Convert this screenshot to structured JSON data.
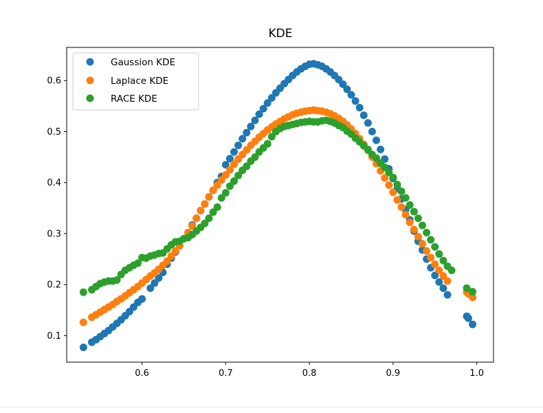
{
  "chart_data": {
    "type": "scatter",
    "title": "KDE",
    "xlabel": "",
    "ylabel": "",
    "xlim": [
      0.51,
      1.02
    ],
    "ylim": [
      0.048,
      0.665
    ],
    "xticks": [
      0.6,
      0.7,
      0.8,
      0.9,
      1.0
    ],
    "xtick_labels": [
      "0.6",
      "0.7",
      "0.8",
      "0.9",
      "1.0"
    ],
    "yticks": [
      0.1,
      0.2,
      0.3,
      0.4,
      0.5,
      0.6
    ],
    "ytick_labels": [
      "0.1",
      "0.2",
      "0.3",
      "0.4",
      "0.5",
      "0.6"
    ],
    "grid": false,
    "legend_position": "top-left",
    "series": [
      {
        "name": "Gaussion KDE",
        "color": "#1f77b4",
        "points": [
          [
            0.53,
            0.077
          ],
          [
            0.54,
            0.087
          ],
          [
            0.545,
            0.092
          ],
          [
            0.55,
            0.098
          ],
          [
            0.555,
            0.104
          ],
          [
            0.56,
            0.11
          ],
          [
            0.565,
            0.117
          ],
          [
            0.57,
            0.124
          ],
          [
            0.575,
            0.131
          ],
          [
            0.58,
            0.139
          ],
          [
            0.585,
            0.147
          ],
          [
            0.59,
            0.156
          ],
          [
            0.595,
            0.165
          ],
          [
            0.6,
            0.172
          ],
          [
            0.61,
            0.193
          ],
          [
            0.615,
            0.203
          ],
          [
            0.62,
            0.213
          ],
          [
            0.625,
            0.224
          ],
          [
            0.63,
            0.24
          ],
          [
            0.635,
            0.252
          ],
          [
            0.64,
            0.264
          ],
          [
            0.65,
            0.29
          ],
          [
            0.655,
            0.302
          ],
          [
            0.66,
            0.317
          ],
          [
            0.665,
            0.33
          ],
          [
            0.67,
            0.345
          ],
          [
            0.675,
            0.358
          ],
          [
            0.68,
            0.372
          ],
          [
            0.685,
            0.385
          ],
          [
            0.69,
            0.4
          ],
          [
            0.695,
            0.412
          ],
          [
            0.7,
            0.435
          ],
          [
            0.705,
            0.447
          ],
          [
            0.71,
            0.46
          ],
          [
            0.715,
            0.473
          ],
          [
            0.72,
            0.486
          ],
          [
            0.725,
            0.498
          ],
          [
            0.73,
            0.51
          ],
          [
            0.735,
            0.522
          ],
          [
            0.74,
            0.534
          ],
          [
            0.745,
            0.545
          ],
          [
            0.75,
            0.556
          ],
          [
            0.755,
            0.566
          ],
          [
            0.76,
            0.576
          ],
          [
            0.765,
            0.585
          ],
          [
            0.77,
            0.594
          ],
          [
            0.775,
            0.602
          ],
          [
            0.78,
            0.61
          ],
          [
            0.785,
            0.617
          ],
          [
            0.79,
            0.623
          ],
          [
            0.795,
            0.628
          ],
          [
            0.8,
            0.632
          ],
          [
            0.805,
            0.633
          ],
          [
            0.81,
            0.631
          ],
          [
            0.815,
            0.628
          ],
          [
            0.82,
            0.623
          ],
          [
            0.825,
            0.617
          ],
          [
            0.83,
            0.61
          ],
          [
            0.835,
            0.602
          ],
          [
            0.84,
            0.593
          ],
          [
            0.845,
            0.583
          ],
          [
            0.85,
            0.572
          ],
          [
            0.855,
            0.56
          ],
          [
            0.86,
            0.547
          ],
          [
            0.865,
            0.532
          ],
          [
            0.87,
            0.517
          ],
          [
            0.875,
            0.5
          ],
          [
            0.88,
            0.483
          ],
          [
            0.885,
            0.465
          ],
          [
            0.89,
            0.446
          ],
          [
            0.895,
            0.427
          ],
          [
            0.9,
            0.408
          ],
          [
            0.905,
            0.388
          ],
          [
            0.91,
            0.368
          ],
          [
            0.915,
            0.347
          ],
          [
            0.92,
            0.327
          ],
          [
            0.925,
            0.305
          ],
          [
            0.93,
            0.285
          ],
          [
            0.935,
            0.268
          ],
          [
            0.94,
            0.25
          ],
          [
            0.945,
            0.233
          ],
          [
            0.95,
            0.218
          ],
          [
            0.955,
            0.205
          ],
          [
            0.96,
            0.193
          ],
          [
            0.965,
            0.18
          ],
          [
            0.988,
            0.138
          ],
          [
            0.99,
            0.134
          ],
          [
            0.995,
            0.122
          ]
        ]
      },
      {
        "name": "Laplace KDE",
        "color": "#ff7f0e",
        "points": [
          [
            0.53,
            0.126
          ],
          [
            0.54,
            0.136
          ],
          [
            0.545,
            0.141
          ],
          [
            0.55,
            0.146
          ],
          [
            0.555,
            0.151
          ],
          [
            0.56,
            0.156
          ],
          [
            0.565,
            0.161
          ],
          [
            0.57,
            0.167
          ],
          [
            0.575,
            0.172
          ],
          [
            0.58,
            0.178
          ],
          [
            0.585,
            0.184
          ],
          [
            0.59,
            0.19
          ],
          [
            0.595,
            0.196
          ],
          [
            0.6,
            0.203
          ],
          [
            0.605,
            0.21
          ],
          [
            0.61,
            0.217
          ],
          [
            0.615,
            0.223
          ],
          [
            0.62,
            0.23
          ],
          [
            0.625,
            0.238
          ],
          [
            0.63,
            0.246
          ],
          [
            0.635,
            0.256
          ],
          [
            0.64,
            0.266
          ],
          [
            0.645,
            0.276
          ],
          [
            0.65,
            0.29
          ],
          [
            0.655,
            0.302
          ],
          [
            0.66,
            0.315
          ],
          [
            0.665,
            0.33
          ],
          [
            0.67,
            0.345
          ],
          [
            0.675,
            0.358
          ],
          [
            0.68,
            0.372
          ],
          [
            0.685,
            0.385
          ],
          [
            0.69,
            0.395
          ],
          [
            0.695,
            0.405
          ],
          [
            0.7,
            0.415
          ],
          [
            0.705,
            0.425
          ],
          [
            0.71,
            0.436
          ],
          [
            0.715,
            0.446
          ],
          [
            0.72,
            0.455
          ],
          [
            0.725,
            0.464
          ],
          [
            0.73,
            0.473
          ],
          [
            0.735,
            0.481
          ],
          [
            0.74,
            0.489
          ],
          [
            0.745,
            0.496
          ],
          [
            0.75,
            0.503
          ],
          [
            0.755,
            0.509
          ],
          [
            0.76,
            0.515
          ],
          [
            0.765,
            0.52
          ],
          [
            0.77,
            0.525
          ],
          [
            0.775,
            0.529
          ],
          [
            0.78,
            0.533
          ],
          [
            0.785,
            0.536
          ],
          [
            0.79,
            0.538
          ],
          [
            0.795,
            0.54
          ],
          [
            0.8,
            0.541
          ],
          [
            0.805,
            0.542
          ],
          [
            0.81,
            0.541
          ],
          [
            0.815,
            0.54
          ],
          [
            0.82,
            0.538
          ],
          [
            0.825,
            0.535
          ],
          [
            0.83,
            0.531
          ],
          [
            0.835,
            0.526
          ],
          [
            0.84,
            0.52
          ],
          [
            0.845,
            0.513
          ],
          [
            0.85,
            0.505
          ],
          [
            0.855,
            0.496
          ],
          [
            0.86,
            0.486
          ],
          [
            0.865,
            0.475
          ],
          [
            0.87,
            0.463
          ],
          [
            0.875,
            0.45
          ],
          [
            0.88,
            0.437
          ],
          [
            0.885,
            0.423
          ],
          [
            0.89,
            0.409
          ],
          [
            0.895,
            0.395
          ],
          [
            0.9,
            0.381
          ],
          [
            0.905,
            0.366
          ],
          [
            0.91,
            0.352
          ],
          [
            0.915,
            0.337
          ],
          [
            0.92,
            0.322
          ],
          [
            0.925,
            0.308
          ],
          [
            0.93,
            0.294
          ],
          [
            0.935,
            0.28
          ],
          [
            0.94,
            0.266
          ],
          [
            0.945,
            0.253
          ],
          [
            0.95,
            0.24
          ],
          [
            0.955,
            0.228
          ],
          [
            0.96,
            0.217
          ],
          [
            0.965,
            0.207
          ],
          [
            0.988,
            0.185
          ],
          [
            0.99,
            0.182
          ],
          [
            0.995,
            0.175
          ]
        ]
      },
      {
        "name": "RACE KDE",
        "color": "#2ca02c",
        "points": [
          [
            0.53,
            0.185
          ],
          [
            0.54,
            0.19
          ],
          [
            0.545,
            0.196
          ],
          [
            0.55,
            0.202
          ],
          [
            0.555,
            0.205
          ],
          [
            0.56,
            0.207
          ],
          [
            0.565,
            0.207
          ],
          [
            0.57,
            0.209
          ],
          [
            0.575,
            0.22
          ],
          [
            0.58,
            0.228
          ],
          [
            0.585,
            0.233
          ],
          [
            0.59,
            0.238
          ],
          [
            0.595,
            0.242
          ],
          [
            0.6,
            0.253
          ],
          [
            0.605,
            0.252
          ],
          [
            0.61,
            0.256
          ],
          [
            0.615,
            0.258
          ],
          [
            0.62,
            0.261
          ],
          [
            0.625,
            0.262
          ],
          [
            0.63,
            0.27
          ],
          [
            0.635,
            0.278
          ],
          [
            0.64,
            0.284
          ],
          [
            0.645,
            0.285
          ],
          [
            0.65,
            0.29
          ],
          [
            0.655,
            0.292
          ],
          [
            0.66,
            0.298
          ],
          [
            0.665,
            0.305
          ],
          [
            0.67,
            0.312
          ],
          [
            0.675,
            0.32
          ],
          [
            0.68,
            0.33
          ],
          [
            0.685,
            0.342
          ],
          [
            0.69,
            0.352
          ],
          [
            0.695,
            0.37
          ],
          [
            0.7,
            0.38
          ],
          [
            0.705,
            0.393
          ],
          [
            0.71,
            0.403
          ],
          [
            0.715,
            0.414
          ],
          [
            0.72,
            0.424
          ],
          [
            0.725,
            0.432
          ],
          [
            0.73,
            0.442
          ],
          [
            0.735,
            0.45
          ],
          [
            0.74,
            0.46
          ],
          [
            0.745,
            0.468
          ],
          [
            0.75,
            0.476
          ],
          [
            0.755,
            0.49
          ],
          [
            0.76,
            0.5
          ],
          [
            0.765,
            0.506
          ],
          [
            0.77,
            0.51
          ],
          [
            0.775,
            0.512
          ],
          [
            0.78,
            0.514
          ],
          [
            0.785,
            0.516
          ],
          [
            0.79,
            0.518
          ],
          [
            0.795,
            0.519
          ],
          [
            0.8,
            0.52
          ],
          [
            0.805,
            0.519
          ],
          [
            0.81,
            0.519
          ],
          [
            0.815,
            0.521
          ],
          [
            0.82,
            0.522
          ],
          [
            0.825,
            0.52
          ],
          [
            0.83,
            0.517
          ],
          [
            0.835,
            0.512
          ],
          [
            0.84,
            0.508
          ],
          [
            0.845,
            0.501
          ],
          [
            0.85,
            0.495
          ],
          [
            0.855,
            0.487
          ],
          [
            0.86,
            0.48
          ],
          [
            0.865,
            0.472
          ],
          [
            0.87,
            0.465
          ],
          [
            0.875,
            0.455
          ],
          [
            0.88,
            0.448
          ],
          [
            0.885,
            0.438
          ],
          [
            0.89,
            0.43
          ],
          [
            0.895,
            0.42
          ],
          [
            0.9,
            0.41
          ],
          [
            0.905,
            0.396
          ],
          [
            0.91,
            0.383
          ],
          [
            0.915,
            0.37
          ],
          [
            0.92,
            0.356
          ],
          [
            0.925,
            0.343
          ],
          [
            0.93,
            0.33
          ],
          [
            0.935,
            0.316
          ],
          [
            0.94,
            0.302
          ],
          [
            0.945,
            0.288
          ],
          [
            0.95,
            0.274
          ],
          [
            0.955,
            0.26
          ],
          [
            0.96,
            0.247
          ],
          [
            0.965,
            0.236
          ],
          [
            0.97,
            0.228
          ],
          [
            0.988,
            0.193
          ],
          [
            0.995,
            0.186
          ]
        ]
      }
    ]
  }
}
